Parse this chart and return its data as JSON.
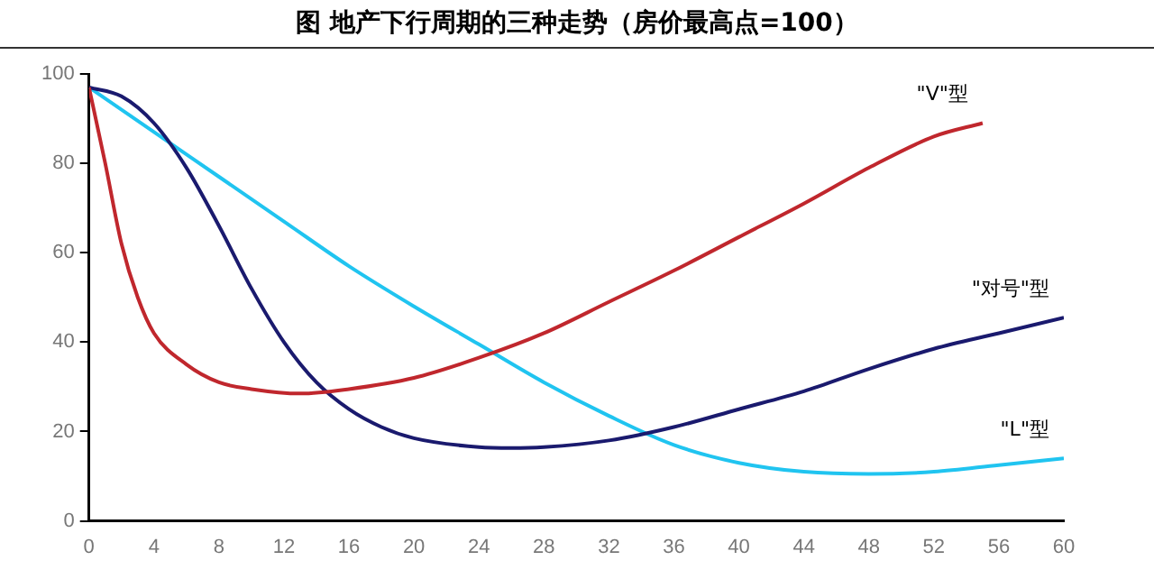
{
  "chart_data": {
    "type": "line",
    "title": "图  地产下行周期的三种走势（房价最高点=100）",
    "xlim": [
      0,
      60
    ],
    "xticks": [
      0,
      4,
      8,
      12,
      16,
      20,
      24,
      28,
      32,
      36,
      40,
      44,
      48,
      52,
      56,
      60
    ],
    "ylim": [
      0,
      100
    ],
    "yticks": [
      0,
      20,
      40,
      60,
      80,
      100
    ],
    "grid": false,
    "legend": false,
    "marker": "none",
    "line_style": "solid",
    "series": [
      {
        "name": "\"V\"型",
        "color": "#c0272d",
        "x": [
          0,
          1,
          2,
          3,
          4,
          6,
          8,
          10,
          13,
          16,
          20,
          24,
          28,
          32,
          36,
          40,
          44,
          48,
          52,
          55
        ],
        "values": [
          97,
          80,
          62,
          50,
          42,
          35,
          31,
          29.5,
          28.5,
          29.5,
          32,
          36.5,
          42,
          49,
          56,
          63.5,
          71,
          79,
          86,
          89
        ]
      },
      {
        "name": "\"对号\"型",
        "color": "#1a1a6e",
        "x": [
          0,
          2,
          4,
          6,
          8,
          10,
          12,
          14,
          16,
          18,
          20,
          24,
          26,
          28,
          32,
          36,
          40,
          44,
          48,
          52,
          56,
          60
        ],
        "values": [
          97,
          95,
          89,
          79,
          66,
          52,
          40,
          31,
          25,
          21,
          18.5,
          16.5,
          16.3,
          16.5,
          18,
          21,
          25,
          29,
          34,
          38.5,
          42,
          45.5
        ]
      },
      {
        "name": "\"L\"型",
        "color": "#20c4f0",
        "x": [
          0,
          4,
          8,
          12,
          16,
          20,
          24,
          28,
          32,
          36,
          40,
          44,
          48,
          52,
          56,
          60
        ],
        "values": [
          97,
          87,
          77,
          67,
          57,
          48,
          39.5,
          31,
          23.5,
          17,
          13,
          11,
          10.5,
          11,
          12.5,
          14
        ]
      }
    ]
  }
}
